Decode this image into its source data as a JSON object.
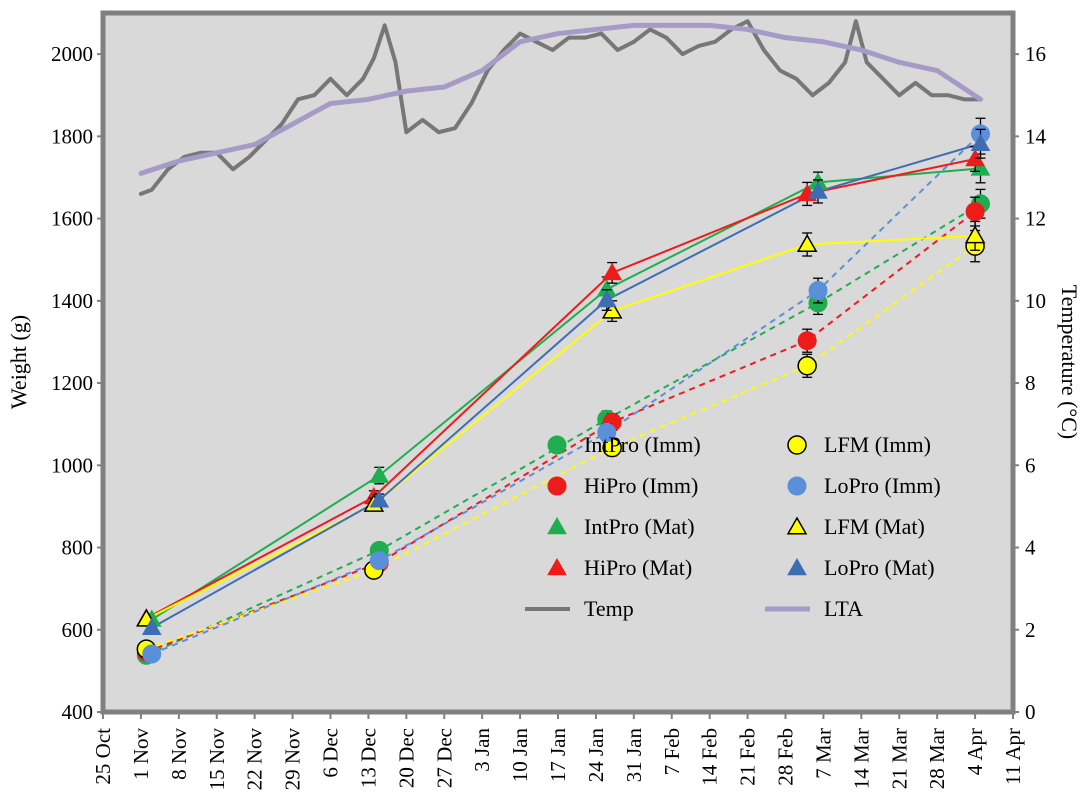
{
  "chart_data": {
    "type": "line",
    "title": "",
    "ylabel": "Weight (g)",
    "y2label": "Temperature (°C)",
    "xlabel": "",
    "x_tick_labels": [
      "25 Oct",
      "1 Nov",
      "8 Nov",
      "15 Nov",
      "22 Nov",
      "29 Nov",
      "6 Dec",
      "13 Dec",
      "20 Dec",
      "27 Dec",
      "3 Jan",
      "10 Jan",
      "17 Jan",
      "24 Jan",
      "31 Jan",
      "7 Feb",
      "14 Feb",
      "21 Feb",
      "28 Feb",
      "7 Mar",
      "14 Mar",
      "21 Mar",
      "28 Mar",
      "4 Apr",
      "11 Apr"
    ],
    "x_tick_dates": [
      "2018-10-25",
      "2018-11-01",
      "2018-11-08",
      "2018-11-15",
      "2018-11-22",
      "2018-11-29",
      "2018-12-06",
      "2018-12-13",
      "2018-12-20",
      "2018-12-27",
      "2019-01-03",
      "2019-01-10",
      "2019-01-17",
      "2019-01-24",
      "2019-01-31",
      "2019-02-07",
      "2019-02-14",
      "2019-02-21",
      "2019-02-28",
      "2019-03-07",
      "2019-03-14",
      "2019-03-21",
      "2019-03-28",
      "2019-04-04",
      "2019-04-11"
    ],
    "ylim": [
      400,
      2100
    ],
    "yticks": [
      "400",
      "600",
      "800",
      "1000",
      "1200",
      "1400",
      "1600",
      "1800",
      "2000"
    ],
    "y2lim": [
      0,
      17
    ],
    "y2ticks": [
      "0",
      "2",
      "4",
      "6",
      "8",
      "10",
      "12",
      "14",
      "16"
    ],
    "grid": false,
    "legend_position": "bottom-right",
    "series": [
      {
        "name": "IntPro (Imm)",
        "marker": "circle",
        "line": "dashed",
        "color": "#1fae4f",
        "points": [
          {
            "x": "2018-11-02",
            "y": 538
          },
          {
            "x": "2018-12-15",
            "y": 793,
            "err": 10
          },
          {
            "x": "2019-01-26",
            "y": 1112,
            "err": 20
          },
          {
            "x": "2019-03-06",
            "y": 1395,
            "err": 28
          },
          {
            "x": "2019-04-05",
            "y": 1636,
            "err": 35
          }
        ]
      },
      {
        "name": "HiPro (Imm)",
        "marker": "circle",
        "line": "dashed",
        "color": "#ee1b1b",
        "points": [
          {
            "x": "2018-11-02",
            "y": 546
          },
          {
            "x": "2018-12-15",
            "y": 763,
            "err": 10
          },
          {
            "x": "2019-01-27",
            "y": 1105,
            "err": 20
          },
          {
            "x": "2019-03-04",
            "y": 1303,
            "err": 28
          },
          {
            "x": "2019-04-04",
            "y": 1617,
            "err": 35
          }
        ]
      },
      {
        "name": "IntPro (Mat)",
        "marker": "triangle",
        "line": "solid",
        "color": "#1fae4f",
        "points": [
          {
            "x": "2018-11-03",
            "y": 625
          },
          {
            "x": "2018-12-15",
            "y": 975,
            "err": 20
          },
          {
            "x": "2019-01-26",
            "y": 1428,
            "err": 30
          },
          {
            "x": "2019-03-06",
            "y": 1688,
            "err": 25
          },
          {
            "x": "2019-04-05",
            "y": 1722,
            "err": 35
          }
        ]
      },
      {
        "name": "HiPro (Mat)",
        "marker": "triangle",
        "line": "solid",
        "color": "#ee1b1b",
        "points": [
          {
            "x": "2018-11-02",
            "y": 628
          },
          {
            "x": "2018-12-14",
            "y": 923,
            "err": 15
          },
          {
            "x": "2019-01-27",
            "y": 1468,
            "err": 25
          },
          {
            "x": "2019-03-04",
            "y": 1660,
            "err": 28
          },
          {
            "x": "2019-04-04",
            "y": 1745,
            "err": 30
          }
        ]
      },
      {
        "name": "Temp",
        "marker": "none",
        "line": "solid",
        "color": "#777777",
        "axis": "right",
        "width": 4,
        "x": [
          "2018-11-01",
          "2018-11-03",
          "2018-11-06",
          "2018-11-09",
          "2018-11-12",
          "2018-11-15",
          "2018-11-18",
          "2018-11-21",
          "2018-11-24",
          "2018-11-27",
          "2018-11-30",
          "2018-12-03",
          "2018-12-06",
          "2018-12-09",
          "2018-12-12",
          "2018-12-14",
          "2018-12-16",
          "2018-12-18",
          "2018-12-20",
          "2018-12-23",
          "2018-12-26",
          "2018-12-29",
          "2019-01-01",
          "2019-01-04",
          "2019-01-07",
          "2019-01-10",
          "2019-01-13",
          "2019-01-16",
          "2019-01-19",
          "2019-01-22",
          "2019-01-25",
          "2019-01-28",
          "2019-01-31",
          "2019-02-03",
          "2019-02-06",
          "2019-02-09",
          "2019-02-12",
          "2019-02-15",
          "2019-02-18",
          "2019-02-21",
          "2019-02-24",
          "2019-02-27",
          "2019-03-02",
          "2019-03-05",
          "2019-03-08",
          "2019-03-11",
          "2019-03-13",
          "2019-03-15",
          "2019-03-18",
          "2019-03-21",
          "2019-03-24",
          "2019-03-27",
          "2019-03-30",
          "2019-04-02",
          "2019-04-05"
        ],
        "y": [
          12.6,
          12.7,
          13.2,
          13.5,
          13.6,
          13.6,
          13.2,
          13.5,
          13.9,
          14.3,
          14.9,
          15.0,
          15.4,
          15.0,
          15.4,
          15.9,
          16.7,
          15.8,
          14.1,
          14.4,
          14.1,
          14.2,
          14.8,
          15.6,
          16.1,
          16.5,
          16.3,
          16.1,
          16.4,
          16.4,
          16.5,
          16.1,
          16.3,
          16.6,
          16.4,
          16.0,
          16.2,
          16.3,
          16.6,
          16.8,
          16.1,
          15.6,
          15.4,
          15.0,
          15.3,
          15.8,
          16.8,
          15.8,
          15.4,
          15.0,
          15.3,
          15.0,
          15.0,
          14.9,
          14.9
        ]
      },
      {
        "name": "LFM (Imm)",
        "marker": "circle",
        "line": "dashed",
        "color": "#ffff00",
        "points": [
          {
            "x": "2018-11-02",
            "y": 553
          },
          {
            "x": "2018-12-14",
            "y": 745,
            "err": 10
          },
          {
            "x": "2019-01-27",
            "y": 1043,
            "err": 20
          },
          {
            "x": "2019-03-04",
            "y": 1242,
            "err": 28
          },
          {
            "x": "2019-04-04",
            "y": 1533,
            "err": 38
          }
        ]
      },
      {
        "name": "LoPro (Imm)",
        "marker": "circle",
        "line": "dashed",
        "color": "#5b8fd9",
        "points": [
          {
            "x": "2018-11-03",
            "y": 541
          },
          {
            "x": "2018-12-15",
            "y": 768,
            "err": 10
          },
          {
            "x": "2019-01-26",
            "y": 1080,
            "err": 20
          },
          {
            "x": "2019-03-06",
            "y": 1425,
            "err": 30
          },
          {
            "x": "2019-04-05",
            "y": 1806,
            "err": 38
          }
        ]
      },
      {
        "name": "LFM (Mat)",
        "marker": "triangle",
        "line": "solid",
        "color": "#ffff00",
        "points": [
          {
            "x": "2018-11-02",
            "y": 626
          },
          {
            "x": "2018-12-14",
            "y": 905,
            "err": 15
          },
          {
            "x": "2019-01-27",
            "y": 1375,
            "err": 25
          },
          {
            "x": "2019-03-04",
            "y": 1537,
            "err": 28
          },
          {
            "x": "2019-04-04",
            "y": 1558,
            "err": 35
          }
        ]
      },
      {
        "name": "LoPro (Mat)",
        "marker": "triangle",
        "line": "solid",
        "color": "#3d6eb4",
        "points": [
          {
            "x": "2018-11-03",
            "y": 605
          },
          {
            "x": "2018-12-15",
            "y": 915,
            "err": 15
          },
          {
            "x": "2019-01-26",
            "y": 1402,
            "err": 25
          },
          {
            "x": "2019-03-06",
            "y": 1666,
            "err": 28
          },
          {
            "x": "2019-04-05",
            "y": 1782,
            "err": 35
          }
        ]
      },
      {
        "name": "LTA",
        "marker": "none",
        "line": "solid",
        "color": "#a69bc7",
        "axis": "right",
        "width": 5,
        "x": [
          "2018-11-01",
          "2018-11-08",
          "2018-11-15",
          "2018-11-22",
          "2018-11-29",
          "2018-12-06",
          "2018-12-13",
          "2018-12-20",
          "2018-12-27",
          "2019-01-03",
          "2019-01-10",
          "2019-01-17",
          "2019-01-24",
          "2019-01-31",
          "2019-02-07",
          "2019-02-14",
          "2019-02-21",
          "2019-02-28",
          "2019-03-07",
          "2019-03-14",
          "2019-03-21",
          "2019-03-28",
          "2019-04-05"
        ],
        "y": [
          13.1,
          13.4,
          13.6,
          13.8,
          14.3,
          14.8,
          14.9,
          15.1,
          15.2,
          15.6,
          16.3,
          16.5,
          16.6,
          16.7,
          16.7,
          16.7,
          16.6,
          16.4,
          16.3,
          16.1,
          15.8,
          15.6,
          14.9
        ]
      }
    ]
  }
}
